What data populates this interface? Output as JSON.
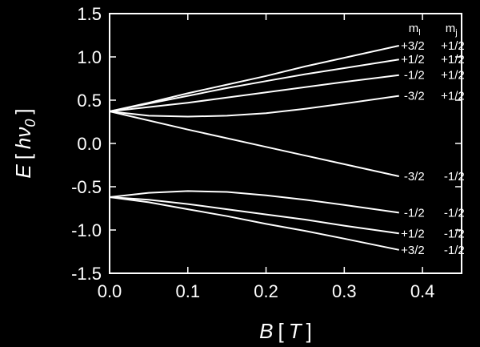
{
  "chart_data": {
    "type": "line",
    "x_axis_label": {
      "var": "B",
      "open": "[",
      "unit": "T",
      "close": "]"
    },
    "y_axis_label": {
      "var": "E",
      "open": "[",
      "unit": "hν",
      "sub": "0",
      "close": "]"
    },
    "xlim": [
      0.0,
      0.45
    ],
    "ylim": [
      -1.5,
      1.5
    ],
    "x_ticks": [
      "0.0",
      "0.1",
      "0.2",
      "0.3",
      "0.4"
    ],
    "y_ticks": [
      "1.5",
      "1.0",
      "0.5",
      "0.0",
      "-0.5",
      "-1.0",
      "-1.5"
    ],
    "column_headers": {
      "ml": {
        "base": "m",
        "sub": "l"
      },
      "mj": {
        "base": "m",
        "sub": "j"
      }
    },
    "series": [
      {
        "ml": "+3/2",
        "mj": "+1/2",
        "x": [
          0,
          0.05,
          0.1,
          0.15,
          0.2,
          0.25,
          0.3,
          0.37
        ],
        "y": [
          0.37,
          0.47,
          0.58,
          0.68,
          0.78,
          0.89,
          0.99,
          1.13
        ]
      },
      {
        "ml": "+1/2",
        "mj": "+1/2",
        "x": [
          0,
          0.05,
          0.1,
          0.15,
          0.2,
          0.25,
          0.3,
          0.37
        ],
        "y": [
          0.37,
          0.46,
          0.55,
          0.64,
          0.72,
          0.8,
          0.87,
          0.97
        ]
      },
      {
        "ml": "-1/2",
        "mj": "+1/2",
        "x": [
          0,
          0.05,
          0.1,
          0.15,
          0.2,
          0.25,
          0.3,
          0.37
        ],
        "y": [
          0.37,
          0.42,
          0.47,
          0.53,
          0.59,
          0.65,
          0.71,
          0.79
        ]
      },
      {
        "ml": "-3/2",
        "mj": "+1/2",
        "x": [
          0,
          0.05,
          0.1,
          0.15,
          0.2,
          0.25,
          0.3,
          0.37
        ],
        "y": [
          0.37,
          0.32,
          0.31,
          0.32,
          0.35,
          0.4,
          0.46,
          0.55
        ]
      },
      {
        "ml": "-3/2",
        "mj": "-1/2",
        "x": [
          0,
          0.1,
          0.2,
          0.3,
          0.37
        ],
        "y": [
          0.37,
          0.16,
          -0.04,
          -0.24,
          -0.38
        ]
      },
      {
        "ml": "-1/2",
        "mj": "-1/2",
        "x": [
          0,
          0.05,
          0.1,
          0.15,
          0.2,
          0.25,
          0.3,
          0.37
        ],
        "y": [
          -0.62,
          -0.57,
          -0.55,
          -0.56,
          -0.6,
          -0.65,
          -0.71,
          -0.8
        ]
      },
      {
        "ml": "+1/2",
        "mj": "-1/2",
        "x": [
          0,
          0.05,
          0.1,
          0.15,
          0.2,
          0.25,
          0.3,
          0.37
        ],
        "y": [
          -0.62,
          -0.65,
          -0.7,
          -0.76,
          -0.82,
          -0.88,
          -0.95,
          -1.04
        ]
      },
      {
        "ml": "+3/2",
        "mj": "-1/2",
        "x": [
          0,
          0.05,
          0.1,
          0.15,
          0.2,
          0.25,
          0.3,
          0.37
        ],
        "y": [
          -0.62,
          -0.68,
          -0.76,
          -0.84,
          -0.93,
          -1.01,
          -1.1,
          -1.23
        ]
      }
    ],
    "grid": false,
    "line_color": "#ffffff",
    "background": "#000000"
  }
}
